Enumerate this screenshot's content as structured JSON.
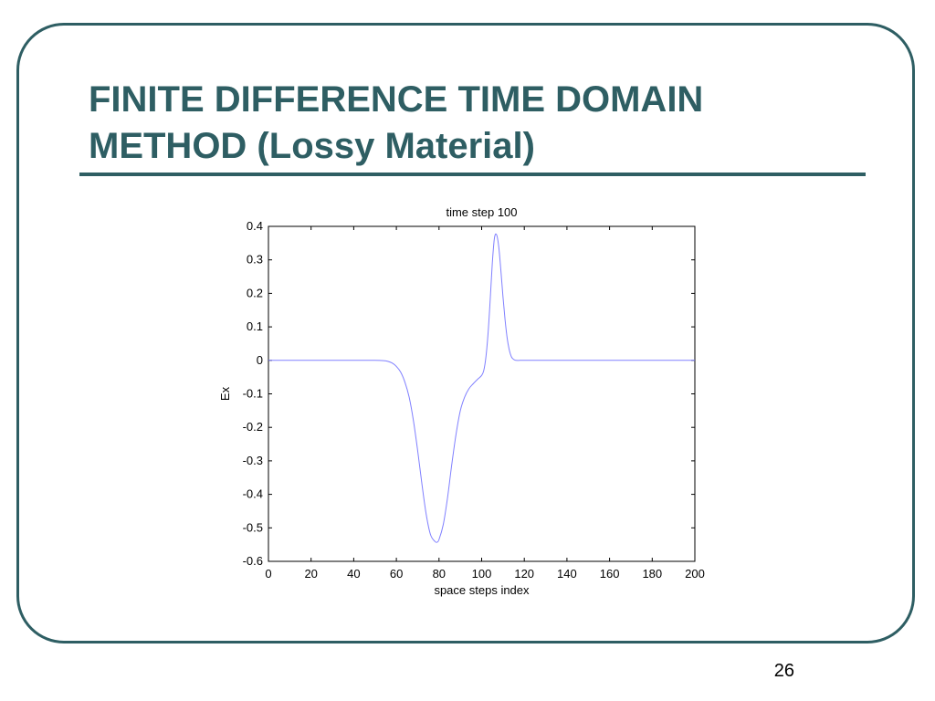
{
  "slide": {
    "title": "FINITE DIFFERENCE TIME DOMAIN METHOD (Lossy Material)",
    "page_number": "26",
    "accent_color": "#2e5e63"
  },
  "chart_data": {
    "type": "line",
    "title": "time step 100",
    "xlabel": "space steps index",
    "ylabel": "Ex",
    "xlim": [
      0,
      200
    ],
    "ylim": [
      -0.6,
      0.4
    ],
    "x_ticks": [
      0,
      20,
      40,
      60,
      80,
      100,
      120,
      140,
      160,
      180,
      200
    ],
    "y_ticks": [
      0.4,
      0.3,
      0.2,
      0.1,
      0,
      -0.1,
      -0.2,
      -0.3,
      -0.4,
      -0.5,
      -0.6
    ],
    "grid": false,
    "line_color": "#8080ff",
    "series": [
      {
        "x": [
          0,
          40,
          50,
          54,
          56,
          58,
          60,
          62,
          64,
          66,
          68,
          70,
          72,
          74,
          76,
          78,
          79,
          80,
          82,
          84,
          86,
          88,
          90,
          92,
          94,
          96,
          98,
          100,
          101,
          102,
          103,
          104,
          105,
          106,
          107,
          108,
          109,
          110,
          111,
          112,
          113,
          114,
          115,
          116,
          118,
          120,
          140,
          160,
          180,
          200
        ],
        "y": [
          0,
          0,
          0,
          -0.001,
          -0.003,
          -0.008,
          -0.018,
          -0.035,
          -0.065,
          -0.11,
          -0.18,
          -0.27,
          -0.37,
          -0.46,
          -0.52,
          -0.54,
          -0.543,
          -0.535,
          -0.49,
          -0.41,
          -0.31,
          -0.22,
          -0.15,
          -0.11,
          -0.085,
          -0.07,
          -0.057,
          -0.045,
          -0.03,
          0.01,
          0.08,
          0.18,
          0.29,
          0.365,
          0.375,
          0.34,
          0.27,
          0.19,
          0.12,
          0.065,
          0.03,
          0.01,
          0.003,
          0,
          0,
          0,
          0,
          0,
          0,
          0
        ]
      }
    ]
  }
}
